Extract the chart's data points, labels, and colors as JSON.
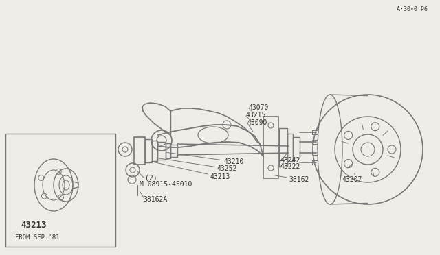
{
  "bg_color": "#f0ede8",
  "line_color": "#777777",
  "text_color": "#333333",
  "title_text": "FROM SEP.'81",
  "part_num_inset": "43213",
  "page_ref": "A·30•0 P6",
  "figsize": [
    6.4,
    3.72
  ],
  "dpi": 100
}
